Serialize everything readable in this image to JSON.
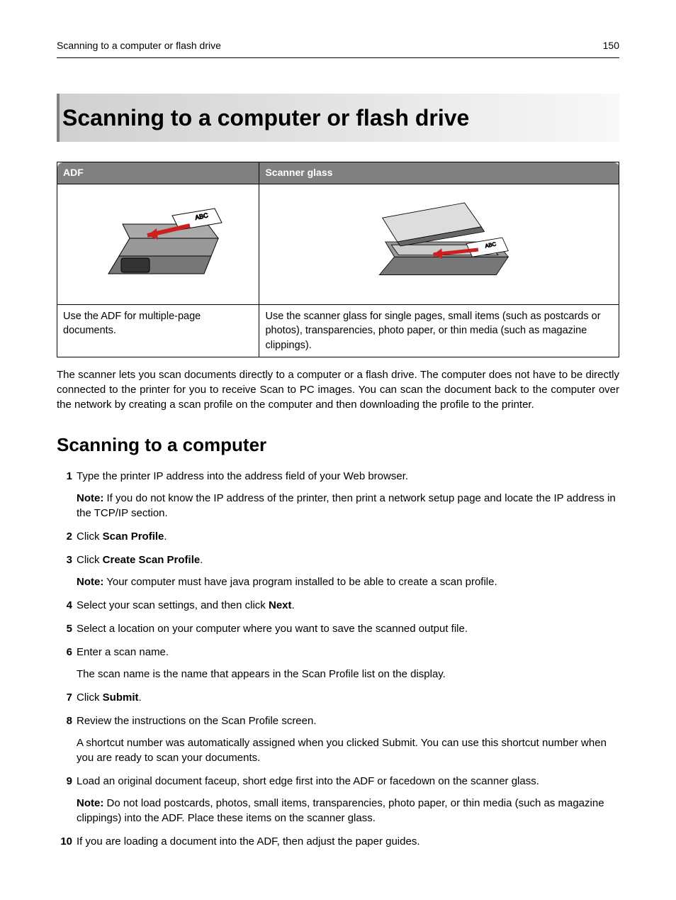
{
  "header": {
    "breadcrumb": "Scanning to a computer or flash drive",
    "page_number": "150"
  },
  "title": "Scanning to a computer or flash drive",
  "table": {
    "headers": [
      "ADF",
      "Scanner glass"
    ],
    "descriptions": [
      "Use the ADF for multiple‑page documents.",
      "Use the scanner glass for single pages, small items (such as postcards or photos), transparencies, photo paper, or thin media (such as magazine clippings)."
    ],
    "header_bg": "#808080",
    "header_text_color": "#ffffff",
    "border_color": "#000000"
  },
  "intro": "The scanner lets you scan documents directly to a computer or a flash drive. The computer does not have to be directly connected to the printer for you to receive Scan to PC images. You can scan the document back to the computer over the network by creating a scan profile on the computer and then downloading the profile to the printer.",
  "section_title": "Scanning to a computer",
  "steps": [
    {
      "text": "Type the printer IP address into the address field of your Web browser.",
      "sub": [
        {
          "note": true,
          "bold_prefix": "Note:",
          "rest": " If you do not know the IP address of the printer, then print a network setup page and locate the IP address in the TCP/IP section."
        }
      ]
    },
    {
      "text_parts": [
        "Click ",
        {
          "b": "Scan Profile"
        },
        "."
      ]
    },
    {
      "text_parts": [
        "Click ",
        {
          "b": "Create Scan Profile"
        },
        "."
      ],
      "sub": [
        {
          "note": true,
          "bold_prefix": "Note:",
          "rest": " Your computer must have java program installed to be able to create a scan profile."
        }
      ]
    },
    {
      "text_parts": [
        "Select your scan settings, and then click ",
        {
          "b": "Next"
        },
        "."
      ]
    },
    {
      "text": "Select a location on your computer where you want to save the scanned output file."
    },
    {
      "text": "Enter a scan name.",
      "sub": [
        {
          "rest": "The scan name is the name that appears in the Scan Profile list on the display."
        }
      ]
    },
    {
      "text_parts": [
        "Click ",
        {
          "b": "Submit"
        },
        "."
      ]
    },
    {
      "text": "Review the instructions on the Scan Profile screen.",
      "sub": [
        {
          "rest": "A shortcut number was automatically assigned when you clicked Submit. You can use this shortcut number when you are ready to scan your documents."
        }
      ]
    },
    {
      "text": "Load an original document faceup, short edge first into the ADF or facedown on the scanner glass.",
      "sub": [
        {
          "note": true,
          "bold_prefix": "Note:",
          "rest": " Do not load postcards, photos, small items, transparencies, photo paper, or thin media (such as magazine clippings) into the ADF. Place these items on the scanner glass."
        }
      ]
    },
    {
      "text": "If you are loading a document into the ADF, then adjust the paper guides."
    }
  ],
  "colors": {
    "title_gradient_start": "#d0d0d0",
    "title_gradient_end": "#f8f8f8",
    "title_border": "#808080",
    "text": "#000000",
    "background": "#ffffff"
  },
  "fonts": {
    "body_family": "Arial, Helvetica, sans-serif",
    "body_size_pt": 11,
    "title_size_pt": 24,
    "section_size_pt": 20
  }
}
